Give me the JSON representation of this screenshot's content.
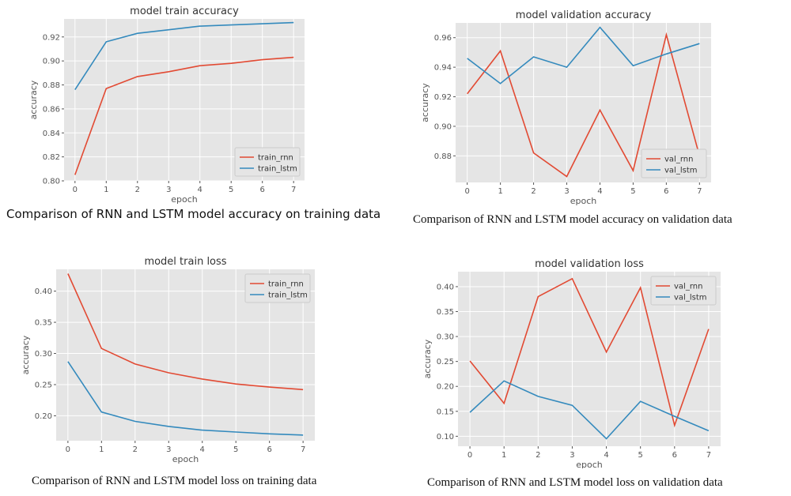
{
  "colors": {
    "rnn": "#E24A33",
    "lstm": "#348ABD",
    "plot_bg": "#E5E5E5",
    "grid": "#FFFFFF"
  },
  "captions": [
    "Comparison of RNN and LSTM model accuracy on training data",
    "Comparison of RNN and LSTM model accuracy on validation data",
    "Comparison of RNN and LSTM model loss on training data",
    "Comparison of RNN and LSTM model loss on validation data"
  ],
  "chart_data": [
    {
      "type": "line",
      "title": "model train accuracy",
      "xlabel": "epoch",
      "ylabel": "accuracy",
      "x": [
        0,
        1,
        2,
        3,
        4,
        5,
        6,
        7
      ],
      "xticks": [
        "0",
        "1",
        "2",
        "3",
        "4",
        "5",
        "6",
        "7"
      ],
      "yticks": [
        "0.80",
        "0.82",
        "0.84",
        "0.86",
        "0.88",
        "0.90",
        "0.92"
      ],
      "ylim": [
        0.8,
        0.935
      ],
      "legend_position": "lower-right",
      "grid": true,
      "series": [
        {
          "name": "train_rnn",
          "values": [
            0.805,
            0.877,
            0.887,
            0.891,
            0.896,
            0.898,
            0.901,
            0.903
          ]
        },
        {
          "name": "train_lstm",
          "values": [
            0.876,
            0.916,
            0.923,
            0.926,
            0.929,
            0.93,
            0.931,
            0.932
          ]
        }
      ]
    },
    {
      "type": "line",
      "title": "model validation accuracy",
      "xlabel": "epoch",
      "ylabel": "accuracy",
      "x": [
        0,
        1,
        2,
        3,
        4,
        5,
        6,
        7
      ],
      "xticks": [
        "0",
        "1",
        "2",
        "3",
        "4",
        "5",
        "6",
        "7"
      ],
      "yticks": [
        "0.88",
        "0.90",
        "0.92",
        "0.94",
        "0.96"
      ],
      "ylim": [
        0.862,
        0.97
      ],
      "legend_position": "lower-right",
      "grid": true,
      "series": [
        {
          "name": "val_rnn",
          "values": [
            0.922,
            0.951,
            0.882,
            0.866,
            0.911,
            0.87,
            0.962,
            0.88
          ]
        },
        {
          "name": "val_lstm",
          "values": [
            0.946,
            0.929,
            0.947,
            0.94,
            0.967,
            0.941,
            0.949,
            0.956
          ]
        }
      ]
    },
    {
      "type": "line",
      "title": "model train loss",
      "xlabel": "epoch",
      "ylabel": "accuracy",
      "x": [
        0,
        1,
        2,
        3,
        4,
        5,
        6,
        7
      ],
      "xticks": [
        "0",
        "1",
        "2",
        "3",
        "4",
        "5",
        "6",
        "7"
      ],
      "yticks": [
        "0.20",
        "0.25",
        "0.30",
        "0.35",
        "0.40"
      ],
      "ylim": [
        0.16,
        0.435
      ],
      "legend_position": "upper-right",
      "grid": true,
      "series": [
        {
          "name": "train_rnn",
          "values": [
            0.428,
            0.308,
            0.283,
            0.269,
            0.259,
            0.251,
            0.246,
            0.242
          ]
        },
        {
          "name": "train_lstm",
          "values": [
            0.287,
            0.206,
            0.191,
            0.183,
            0.177,
            0.174,
            0.171,
            0.169
          ]
        }
      ]
    },
    {
      "type": "line",
      "title": "model validation loss",
      "xlabel": "epoch",
      "ylabel": "accuracy",
      "x": [
        0,
        1,
        2,
        3,
        4,
        5,
        6,
        7
      ],
      "xticks": [
        "0",
        "1",
        "2",
        "3",
        "4",
        "5",
        "6",
        "7"
      ],
      "yticks": [
        "0.10",
        "0.15",
        "0.20",
        "0.25",
        "0.30",
        "0.35",
        "0.40"
      ],
      "ylim": [
        0.08,
        0.43
      ],
      "legend_position": "upper-right",
      "grid": true,
      "series": [
        {
          "name": "val_rnn",
          "values": [
            0.251,
            0.166,
            0.38,
            0.416,
            0.269,
            0.398,
            0.122,
            0.315
          ]
        },
        {
          "name": "val_lstm",
          "values": [
            0.148,
            0.211,
            0.18,
            0.162,
            0.095,
            0.17,
            0.14,
            0.111
          ]
        }
      ]
    }
  ]
}
